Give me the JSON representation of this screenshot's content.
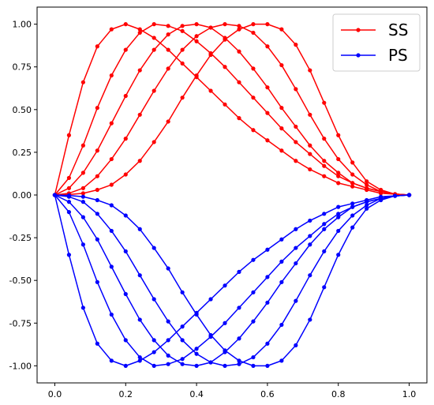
{
  "chart_data": {
    "type": "line",
    "title": "",
    "xlabel": "",
    "ylabel": "",
    "xlim": [
      -0.05,
      1.05
    ],
    "ylim": [
      -1.1,
      1.1
    ],
    "grid": false,
    "legend_placement": "top-right",
    "x_ticks": [
      "0.0",
      "0.2",
      "0.4",
      "0.6",
      "0.8",
      "1.0"
    ],
    "y_ticks": [
      "1.00",
      "0.75",
      "0.50",
      "0.25",
      "0.00",
      "-0.25",
      "-0.50",
      "-0.75",
      "-1.00"
    ],
    "x": [
      0,
      0.04,
      0.08,
      0.12,
      0.16,
      0.2,
      0.24,
      0.28,
      0.32,
      0.36,
      0.4,
      0.44,
      0.48,
      0.52,
      0.56,
      0.6,
      0.64,
      0.68,
      0.72,
      0.76,
      0.8,
      0.84,
      0.88,
      0.92,
      0.96,
      1.0
    ],
    "series": [
      {
        "name": "SS",
        "color": "#ff0000",
        "peak_position": 0.2,
        "values": [
          0,
          0.35,
          0.66,
          0.87,
          0.97,
          1.0,
          0.97,
          0.92,
          0.85,
          0.77,
          0.69,
          0.61,
          0.53,
          0.45,
          0.38,
          0.32,
          0.26,
          0.2,
          0.15,
          0.11,
          0.07,
          0.05,
          0.03,
          0.01,
          0.005,
          0
        ]
      },
      {
        "name": "",
        "color": "#ff0000",
        "peak_position": 0.3,
        "values": [
          0,
          0.1,
          0.29,
          0.51,
          0.7,
          0.85,
          0.95,
          1.0,
          0.99,
          0.96,
          0.9,
          0.83,
          0.75,
          0.66,
          0.57,
          0.48,
          0.39,
          0.31,
          0.24,
          0.17,
          0.11,
          0.07,
          0.04,
          0.02,
          0.005,
          0
        ]
      },
      {
        "name": "",
        "color": "#ff0000",
        "peak_position": 0.4,
        "values": [
          0,
          0.04,
          0.13,
          0.26,
          0.42,
          0.58,
          0.73,
          0.85,
          0.94,
          0.99,
          1.0,
          0.98,
          0.92,
          0.84,
          0.74,
          0.63,
          0.51,
          0.4,
          0.29,
          0.2,
          0.13,
          0.07,
          0.04,
          0.02,
          0.005,
          0
        ]
      },
      {
        "name": "",
        "color": "#ff0000",
        "peak_position": 0.5,
        "values": [
          0,
          0.01,
          0.04,
          0.11,
          0.21,
          0.33,
          0.47,
          0.61,
          0.74,
          0.85,
          0.93,
          0.98,
          1.0,
          0.99,
          0.95,
          0.87,
          0.76,
          0.62,
          0.47,
          0.33,
          0.21,
          0.12,
          0.06,
          0.02,
          0.005,
          0
        ]
      },
      {
        "name": "",
        "color": "#ff0000",
        "peak_position": 0.6,
        "values": [
          0,
          0.003,
          0.01,
          0.03,
          0.06,
          0.12,
          0.2,
          0.31,
          0.43,
          0.57,
          0.7,
          0.82,
          0.91,
          0.97,
          1.0,
          1.0,
          0.97,
          0.88,
          0.73,
          0.54,
          0.35,
          0.19,
          0.08,
          0.03,
          0.005,
          0
        ]
      },
      {
        "name": "PS",
        "color": "#0000ff",
        "peak_position": 0.2,
        "values": [
          0,
          -0.35,
          -0.66,
          -0.87,
          -0.97,
          -1.0,
          -0.97,
          -0.92,
          -0.85,
          -0.77,
          -0.69,
          -0.61,
          -0.53,
          -0.45,
          -0.38,
          -0.32,
          -0.26,
          -0.2,
          -0.15,
          -0.11,
          -0.07,
          -0.05,
          -0.03,
          -0.01,
          -0.005,
          0
        ]
      },
      {
        "name": "",
        "color": "#0000ff",
        "peak_position": 0.3,
        "values": [
          0,
          -0.1,
          -0.29,
          -0.51,
          -0.7,
          -0.85,
          -0.95,
          -1.0,
          -0.99,
          -0.96,
          -0.9,
          -0.83,
          -0.75,
          -0.66,
          -0.57,
          -0.48,
          -0.39,
          -0.31,
          -0.24,
          -0.17,
          -0.11,
          -0.07,
          -0.04,
          -0.02,
          -0.005,
          0
        ]
      },
      {
        "name": "",
        "color": "#0000ff",
        "peak_position": 0.4,
        "values": [
          0,
          -0.04,
          -0.13,
          -0.26,
          -0.42,
          -0.58,
          -0.73,
          -0.85,
          -0.94,
          -0.99,
          -1.0,
          -0.98,
          -0.92,
          -0.84,
          -0.74,
          -0.63,
          -0.51,
          -0.4,
          -0.29,
          -0.2,
          -0.13,
          -0.07,
          -0.04,
          -0.02,
          -0.005,
          0
        ]
      },
      {
        "name": "",
        "color": "#0000ff",
        "peak_position": 0.5,
        "values": [
          0,
          -0.01,
          -0.04,
          -0.11,
          -0.21,
          -0.33,
          -0.47,
          -0.61,
          -0.74,
          -0.85,
          -0.93,
          -0.98,
          -1.0,
          -0.99,
          -0.95,
          -0.87,
          -0.76,
          -0.62,
          -0.47,
          -0.33,
          -0.21,
          -0.12,
          -0.06,
          -0.02,
          -0.005,
          0
        ]
      },
      {
        "name": "",
        "color": "#0000ff",
        "peak_position": 0.6,
        "values": [
          0,
          -0.003,
          -0.01,
          -0.03,
          -0.06,
          -0.12,
          -0.2,
          -0.31,
          -0.43,
          -0.57,
          -0.7,
          -0.82,
          -0.91,
          -0.97,
          -1.0,
          -1.0,
          -0.97,
          -0.88,
          -0.73,
          -0.54,
          -0.35,
          -0.19,
          -0.08,
          -0.03,
          -0.005,
          0
        ]
      }
    ],
    "legend": [
      {
        "label": "SS",
        "color": "#ff0000"
      },
      {
        "label": "PS",
        "color": "#0000ff"
      }
    ]
  }
}
